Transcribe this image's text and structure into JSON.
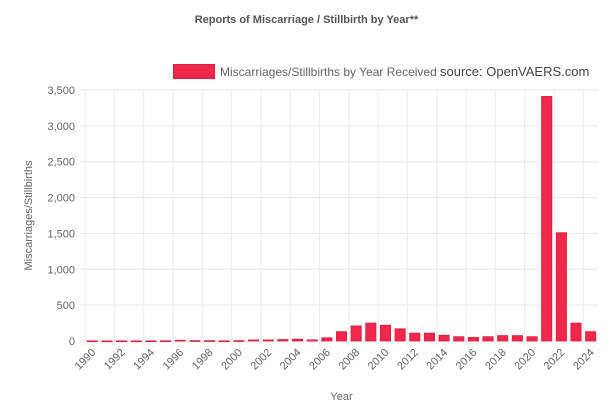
{
  "chart_data": {
    "type": "bar",
    "title": "Reports of Miscarriage / Stillbirth by Year**",
    "legend": "Miscarriages/Stillbirths by Year Received",
    "source": "source: OpenVAERS.com",
    "xlabel": "Year",
    "ylabel": "Miscarriages/Stillbirths",
    "ylim": [
      0,
      3500
    ],
    "yticks": [
      0,
      500,
      1000,
      1500,
      2000,
      2500,
      3000,
      3500
    ],
    "ytick_labels": [
      "0",
      "500",
      "1,000",
      "1,500",
      "2,000",
      "2,500",
      "3,000",
      "3,500"
    ],
    "categories": [
      1990,
      1991,
      1992,
      1993,
      1994,
      1995,
      1996,
      1997,
      1998,
      1999,
      2000,
      2001,
      2002,
      2003,
      2004,
      2005,
      2006,
      2007,
      2008,
      2009,
      2010,
      2011,
      2012,
      2013,
      2014,
      2015,
      2016,
      2017,
      2018,
      2019,
      2020,
      2021,
      2022,
      2023,
      2024
    ],
    "values": [
      2,
      1,
      2,
      1,
      2,
      3,
      10,
      5,
      5,
      2,
      5,
      15,
      15,
      20,
      25,
      15,
      45,
      130,
      210,
      250,
      220,
      170,
      110,
      110,
      80,
      60,
      50,
      60,
      75,
      75,
      60,
      3410,
      1510,
      250,
      130
    ],
    "xtick_labels": [
      "1990",
      "1992",
      "1994",
      "1996",
      "1998",
      "2000",
      "2002",
      "2004",
      "2006",
      "2008",
      "2010",
      "2012",
      "2014",
      "2016",
      "2018",
      "2020",
      "2022",
      "2024"
    ],
    "color": "#f0284a",
    "grid": true,
    "legend_position": "top"
  }
}
